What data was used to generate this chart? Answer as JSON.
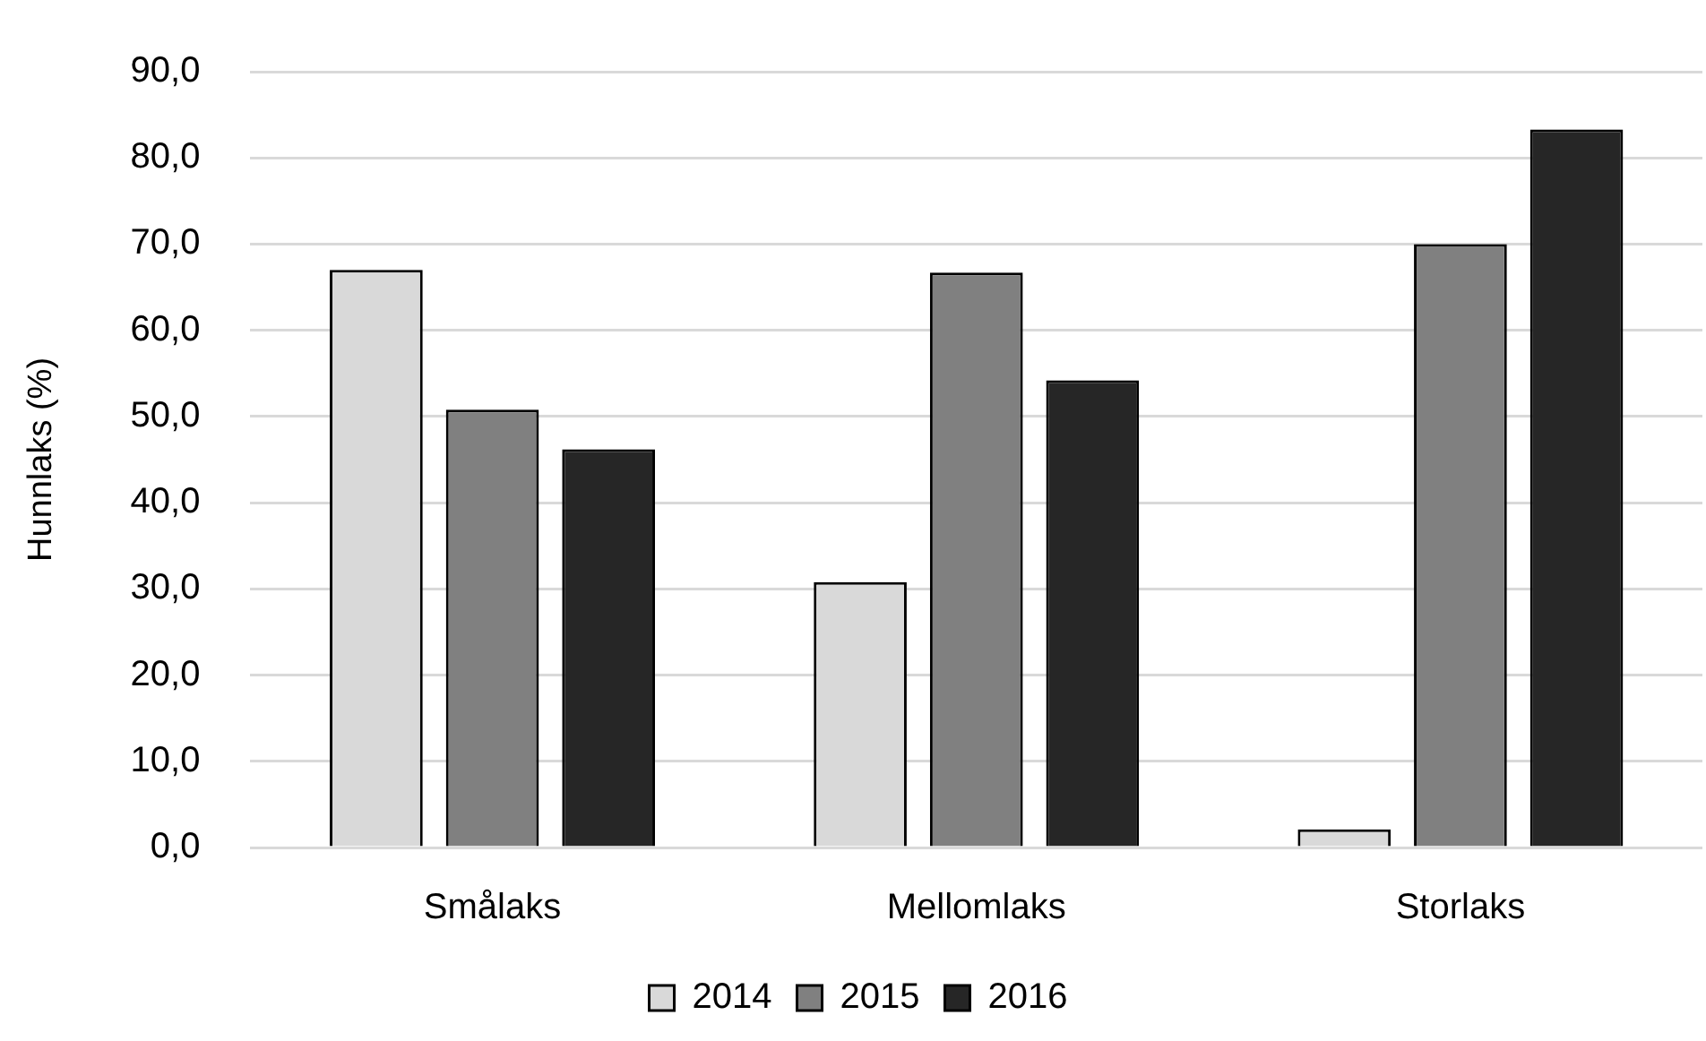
{
  "chart_data": {
    "type": "bar",
    "ylabel": "Hunnlaks (%)",
    "categories": [
      "Smålaks",
      "Mellomlaks",
      "Storlaks"
    ],
    "series": [
      {
        "name": "2014",
        "color": "#d9d9d9",
        "values": [
          67.0,
          30.8,
          2.1
        ]
      },
      {
        "name": "2015",
        "color": "#808080",
        "values": [
          50.8,
          66.7,
          70.0
        ]
      },
      {
        "name": "2016",
        "color": "#262626",
        "values": [
          46.2,
          54.2,
          83.3
        ]
      }
    ],
    "ylim": [
      0,
      90
    ],
    "yticks": [
      {
        "value": 0,
        "label": "0,0"
      },
      {
        "value": 10,
        "label": "10,0"
      },
      {
        "value": 20,
        "label": "20,0"
      },
      {
        "value": 30,
        "label": "30,0"
      },
      {
        "value": 40,
        "label": "40,0"
      },
      {
        "value": 50,
        "label": "50,0"
      },
      {
        "value": 60,
        "label": "60,0"
      },
      {
        "value": 70,
        "label": "70,0"
      },
      {
        "value": 80,
        "label": "80,0"
      },
      {
        "value": 90,
        "label": "90,0"
      }
    ],
    "grid": "y",
    "legend": "bottom"
  }
}
